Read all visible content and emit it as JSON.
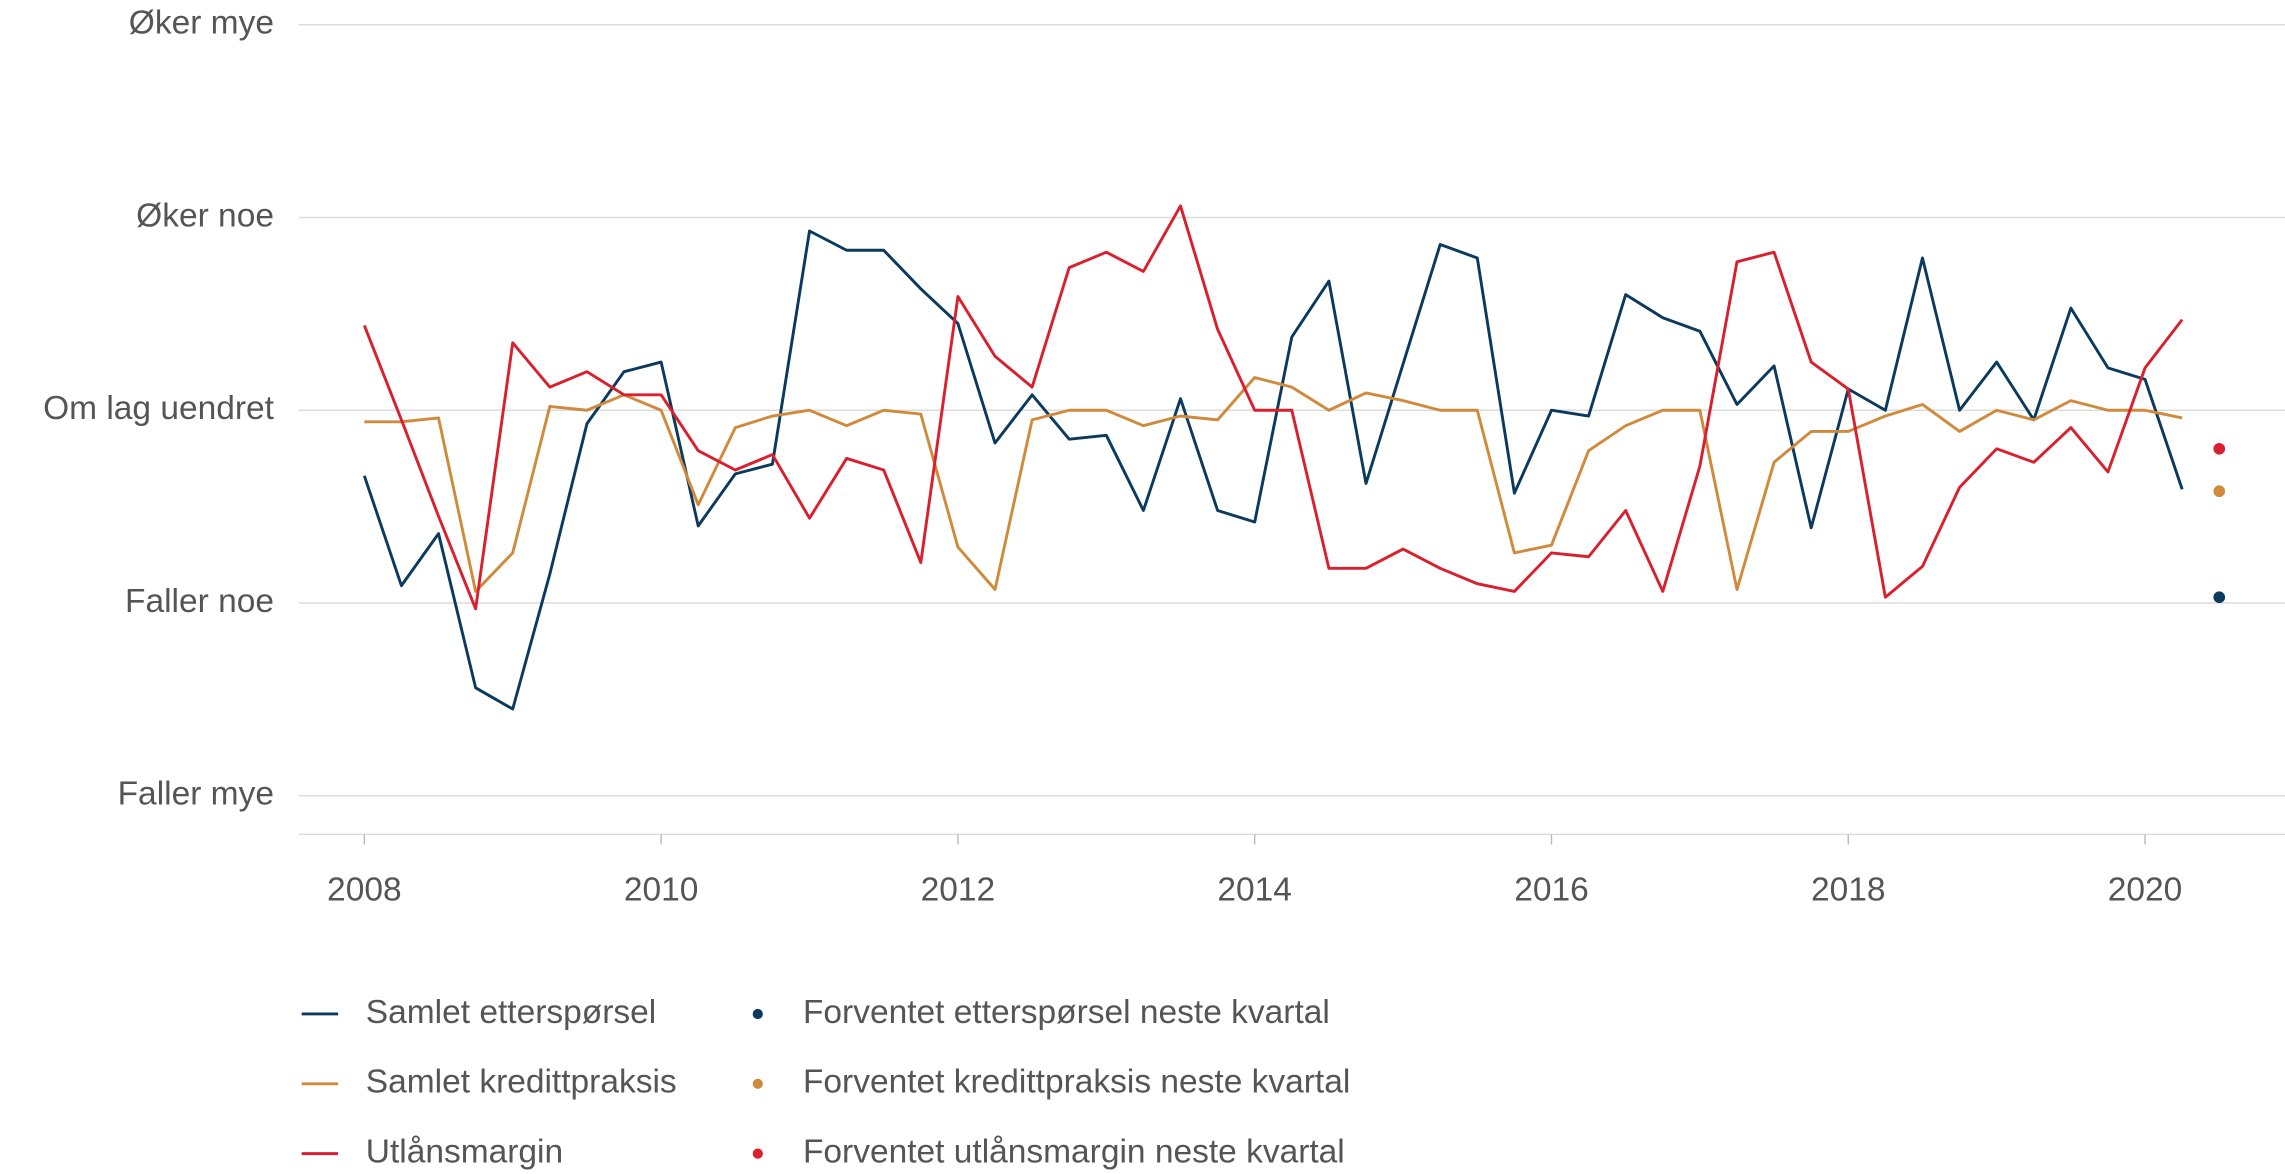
{
  "chart_data": {
    "type": "line",
    "x": [
      2008,
      2008.25,
      2008.5,
      2008.75,
      2009,
      2009.25,
      2009.5,
      2009.75,
      2010,
      2010.25,
      2010.5,
      2010.75,
      2011,
      2011.25,
      2011.5,
      2011.75,
      2012,
      2012.25,
      2012.5,
      2012.75,
      2013,
      2013.25,
      2013.5,
      2013.75,
      2014,
      2014.25,
      2014.5,
      2014.75,
      2015,
      2015.25,
      2015.5,
      2015.75,
      2016,
      2016.25,
      2016.5,
      2016.75,
      2017,
      2017.25,
      2017.5,
      2017.75,
      2018,
      2018.25,
      2018.5,
      2018.75,
      2019,
      2019.25,
      2019.5,
      2019.75,
      2020,
      2020.25
    ],
    "series": [
      {
        "name": "Samlet etterspørsel",
        "color": "#0b3a5e",
        "values": [
          -0.34,
          -0.91,
          -0.64,
          -1.44,
          -1.55,
          -0.85,
          -0.07,
          0.2,
          0.25,
          -0.6,
          -0.33,
          -0.28,
          0.93,
          0.83,
          0.83,
          0.63,
          0.45,
          -0.17,
          0.08,
          -0.15,
          -0.13,
          -0.52,
          0.06,
          -0.52,
          -0.58,
          0.38,
          0.67,
          -0.38,
          0.24,
          0.86,
          0.79,
          -0.43,
          0,
          -0.03,
          0.6,
          0.48,
          0.41,
          0.03,
          0.23,
          -0.61,
          0.11,
          0,
          0.79,
          0,
          0.25,
          -0.05,
          0.53,
          0.22,
          0.16,
          -0.41
        ]
      },
      {
        "name": "Samlet kredittpraksis",
        "color": "#d08a3c",
        "values": [
          -0.06,
          -0.06,
          -0.04,
          -0.94,
          -0.74,
          0.02,
          0,
          0.08,
          0,
          -0.49,
          -0.09,
          -0.03,
          0,
          -0.08,
          0,
          -0.02,
          -0.71,
          -0.93,
          -0.05,
          0,
          0,
          -0.08,
          -0.03,
          -0.05,
          0.17,
          0.12,
          0,
          0.09,
          0.05,
          0,
          0,
          -0.74,
          -0.7,
          -0.21,
          -0.08,
          0,
          0,
          -0.93,
          -0.27,
          -0.11,
          -0.11,
          -0.03,
          0.03,
          -0.11,
          0,
          -0.05,
          0.05,
          0,
          0,
          -0.04
        ]
      },
      {
        "name": "Utlånsmargin",
        "color": "#d9202e",
        "values": [
          0.44,
          -0.05,
          -0.55,
          -1.03,
          0.35,
          0.12,
          0.2,
          0.08,
          0.08,
          -0.21,
          -0.31,
          -0.23,
          -0.56,
          -0.25,
          -0.31,
          -0.79,
          0.59,
          0.28,
          0.12,
          0.74,
          0.82,
          0.72,
          1.06,
          0.42,
          0,
          0,
          -0.82,
          -0.82,
          -0.72,
          -0.82,
          -0.9,
          -0.94,
          -0.74,
          -0.76,
          -0.52,
          -0.94,
          -0.29,
          0.77,
          0.82,
          0.25,
          0.11,
          -0.97,
          -0.81,
          -0.4,
          -0.2,
          -0.27,
          -0.09,
          -0.32,
          0.22,
          0.47
        ]
      },
      {
        "name": "Forventet etterspørsel neste kvartal",
        "color": "#0b3a5e",
        "marker": "dot",
        "x": [
          2020.5
        ],
        "values": [
          -0.97
        ]
      },
      {
        "name": "Forventet kredittpraksis neste kvartal",
        "color": "#d08a3c",
        "marker": "dot",
        "x": [
          2020.5
        ],
        "values": [
          -0.42
        ]
      },
      {
        "name": "Forventet utlånsmargin neste kvartal",
        "color": "#d9202e",
        "marker": "dot",
        "x": [
          2020.5
        ],
        "values": [
          -0.2
        ]
      }
    ],
    "xlim": [
      2007.558,
      2020.943
    ],
    "xticks": [
      2008,
      2010,
      2012,
      2014,
      2016,
      2018,
      2020
    ],
    "ylim": [
      -2.2,
      2
    ],
    "yticks": [
      {
        "value": -2,
        "label": "Faller mye"
      },
      {
        "value": -1,
        "label": "Faller noe"
      },
      {
        "value": 0,
        "label": "Om lag uendret"
      },
      {
        "value": 1,
        "label": "Øker noe"
      },
      {
        "value": 2,
        "label": "Øker mye"
      }
    ],
    "grid": true,
    "legend": "bottom"
  }
}
